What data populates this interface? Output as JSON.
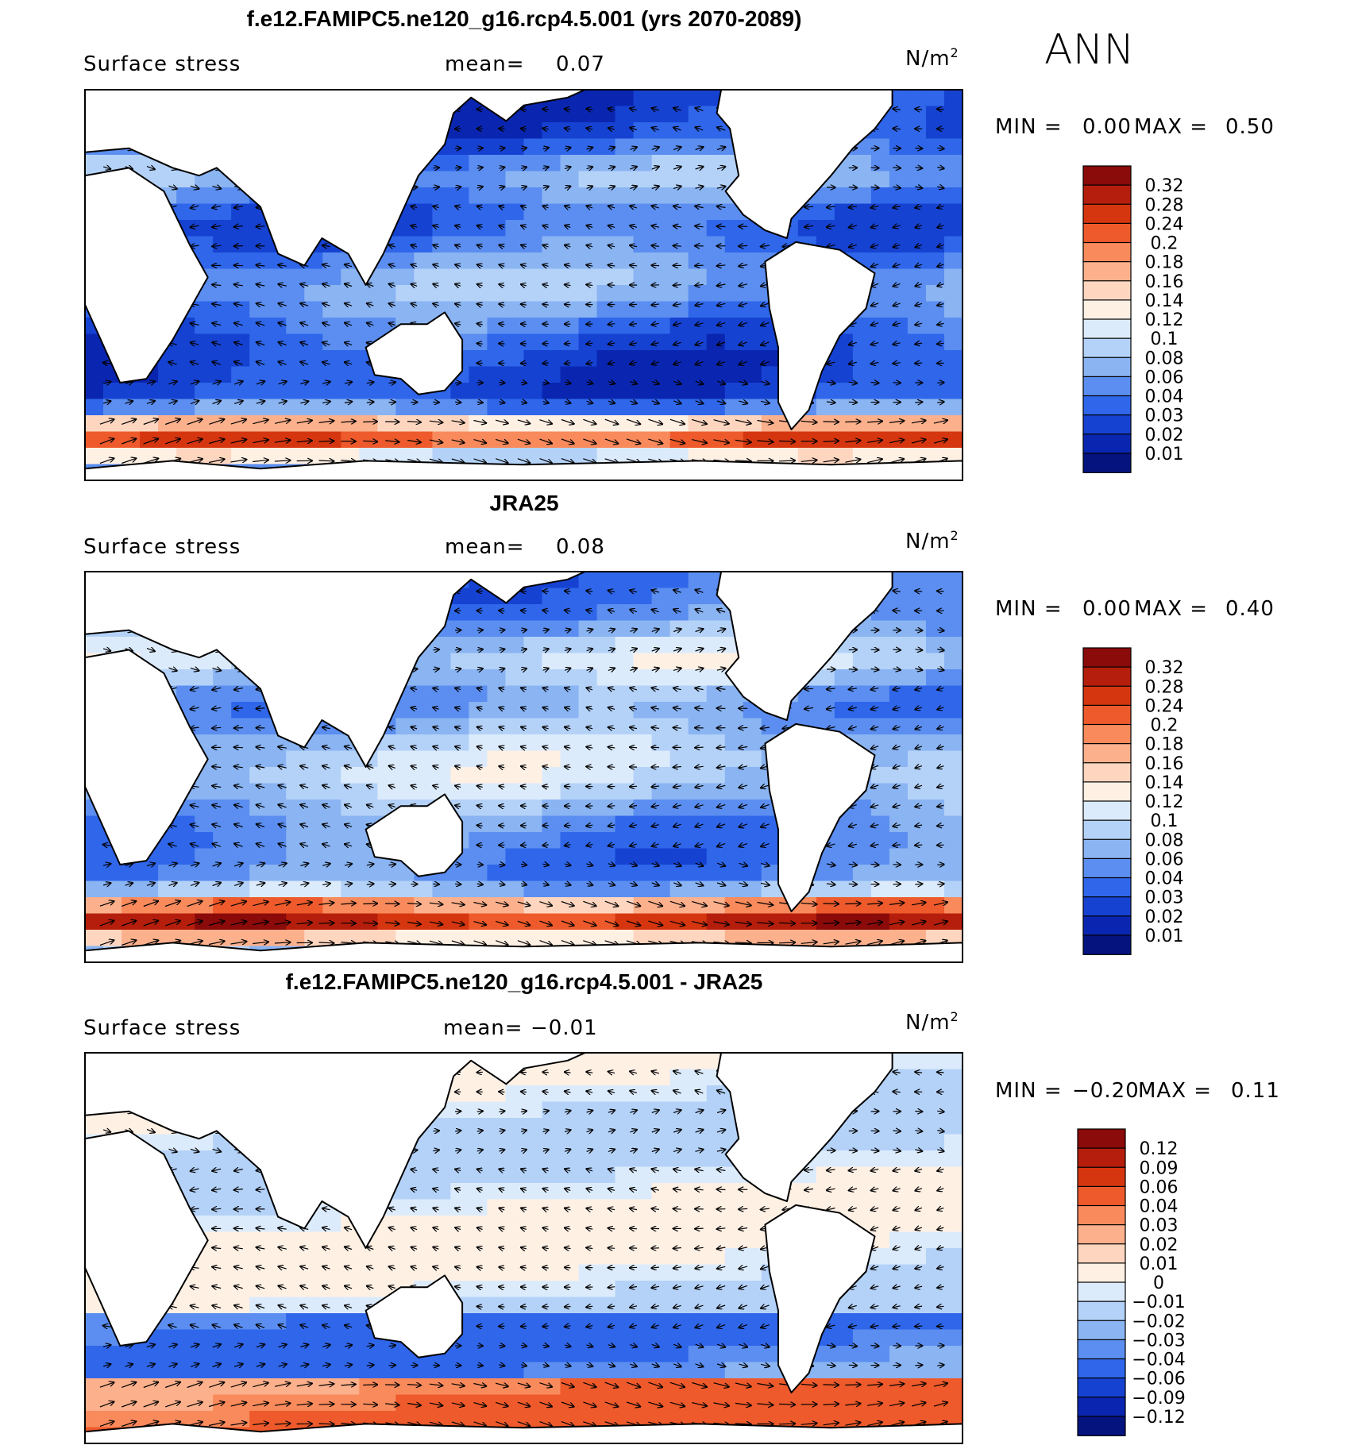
{
  "season_label": "ANN",
  "chart_data": [
    {
      "type": "heatmap",
      "title": "f.e12.FAMIPC5.ne120_g16.rcp4.5.001 (yrs 2070-2089)",
      "variable": "Surface stress",
      "mean_label": "mean=",
      "mean": "0.07",
      "units": "N/m",
      "units_sup": "2",
      "min_label": "MIN =",
      "min": "0.00",
      "max_label": "MAX =",
      "max": "0.50",
      "colorbar_ticks": [
        "0.32",
        "0.28",
        "0.24",
        "0.2",
        "0.18",
        "0.16",
        "0.14",
        "0.12",
        "0.1",
        "0.08",
        "0.06",
        "0.04",
        "0.03",
        "0.02",
        "0.01"
      ],
      "colorbar_colors": [
        "#8b0a0a",
        "#b51e0c",
        "#d6360f",
        "#ee5a2b",
        "#f98a5c",
        "#fcb08c",
        "#fed6c0",
        "#fff0e4",
        "#dcebfb",
        "#b4d2f8",
        "#8ab4f2",
        "#5b8ef0",
        "#2f66ea",
        "#1642d2",
        "#0a26b0",
        "#05137e"
      ],
      "field_values": [
        0.02,
        0.06,
        0.2
      ]
    },
    {
      "type": "heatmap",
      "title": "JRA25",
      "variable": "Surface stress",
      "mean_label": "mean=",
      "mean": "0.08",
      "units": "N/m",
      "units_sup": "2",
      "min_label": "MIN =",
      "min": "0.00",
      "max_label": "MAX =",
      "max": "0.40",
      "colorbar_ticks": [
        "0.32",
        "0.28",
        "0.24",
        "0.2",
        "0.18",
        "0.16",
        "0.14",
        "0.12",
        "0.1",
        "0.08",
        "0.06",
        "0.04",
        "0.03",
        "0.02",
        "0.01"
      ],
      "colorbar_colors": [
        "#8b0a0a",
        "#b51e0c",
        "#d6360f",
        "#ee5a2b",
        "#f98a5c",
        "#fcb08c",
        "#fed6c0",
        "#fff0e4",
        "#dcebfb",
        "#b4d2f8",
        "#8ab4f2",
        "#5b8ef0",
        "#2f66ea",
        "#1642d2",
        "#0a26b0",
        "#05137e"
      ],
      "field_values": [
        0.04,
        0.08,
        0.2
      ]
    },
    {
      "type": "heatmap",
      "title": "f.e12.FAMIPC5.ne120_g16.rcp4.5.001 - JRA25",
      "variable": "Surface stress",
      "mean_label": "mean=",
      "mean": "−0.01",
      "units": "N/m",
      "units_sup": "2",
      "min_label": "MIN =",
      "min": "−0.20",
      "max_label": "MAX =",
      "max": "0.11",
      "colorbar_ticks": [
        "0.12",
        "0.09",
        "0.06",
        "0.04",
        "0.03",
        "0.02",
        "0.01",
        "0",
        "−0.01",
        "−0.02",
        "−0.03",
        "−0.04",
        "−0.06",
        "−0.09",
        "−0.12"
      ],
      "colorbar_colors": [
        "#8b0a0a",
        "#b51e0c",
        "#d6360f",
        "#ee5a2b",
        "#f98a5c",
        "#fcb08c",
        "#fed6c0",
        "#fff0e4",
        "#dcebfb",
        "#b4d2f8",
        "#8ab4f2",
        "#5b8ef0",
        "#2f66ea",
        "#1642d2",
        "#0a26b0",
        "#05137e"
      ],
      "field_values": [
        -0.03,
        -0.01,
        0.04
      ]
    }
  ]
}
